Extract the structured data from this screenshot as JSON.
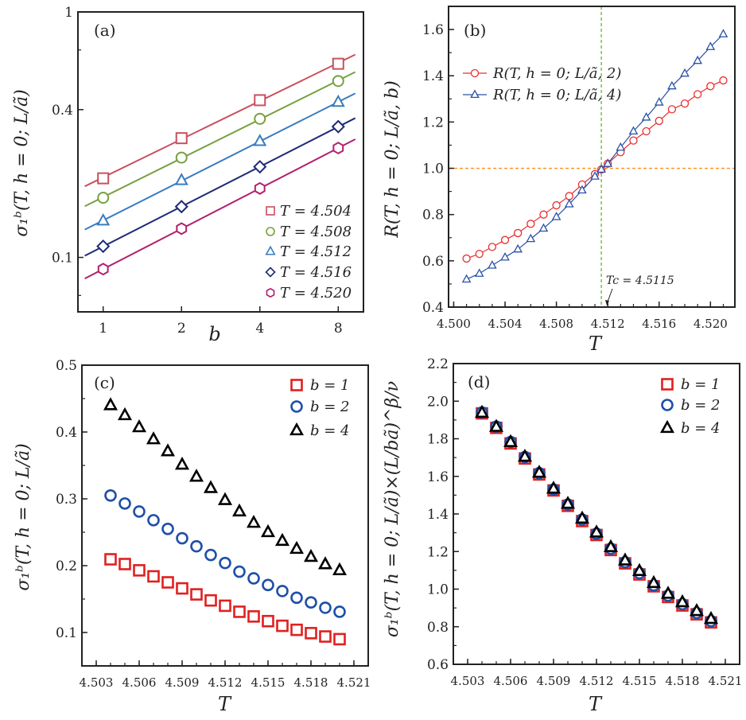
{
  "chart_data": [
    {
      "panel_label": "(a)",
      "type": "scatter",
      "xscale": "log2",
      "yscale": "log",
      "xlabel": "b",
      "ylabel": "σ₁ᵇ(T, h = 0; L/ã)",
      "xlim": [
        0.8,
        10
      ],
      "ylim": [
        0.06,
        1
      ],
      "xticks": [
        1,
        2,
        4,
        8
      ],
      "xtick_labels": [
        "1",
        "2",
        "4",
        "8"
      ],
      "yticks": [
        0.1,
        0.4,
        1
      ],
      "ytick_labels": [
        "0.1",
        "0.4",
        "1"
      ],
      "legend": "bottom-right",
      "fit_lines": true,
      "series": [
        {
          "name": "T = 4.504",
          "marker": "square",
          "color": "#c9505e",
          "x": [
            1,
            2,
            4,
            8
          ],
          "y": [
            0.21,
            0.306,
            0.437,
            0.615
          ]
        },
        {
          "name": "T = 4.508",
          "marker": "circle",
          "color": "#78a040",
          "x": [
            1,
            2,
            4,
            8
          ],
          "y": [
            0.175,
            0.255,
            0.367,
            0.523
          ]
        },
        {
          "name": "T = 4.512",
          "marker": "triangle",
          "color": "#3a7cc0",
          "x": [
            1,
            2,
            4,
            8
          ],
          "y": [
            0.141,
            0.206,
            0.297,
            0.429
          ]
        },
        {
          "name": "T = 4.516",
          "marker": "diamond",
          "color": "#1e2a78",
          "x": [
            1,
            2,
            4,
            8
          ],
          "y": [
            0.111,
            0.161,
            0.234,
            0.341
          ]
        },
        {
          "name": "T = 4.520",
          "marker": "hexagon",
          "color": "#b0206e",
          "x": [
            1,
            2,
            4,
            8
          ],
          "y": [
            0.0896,
            0.131,
            0.191,
            0.279
          ]
        }
      ]
    },
    {
      "panel_label": "(b)",
      "type": "line",
      "xlabel": "T",
      "ylabel": "R(T, h = 0; L/ã, b)",
      "xlim": [
        4.4996,
        4.5219
      ],
      "ylim": [
        0.4,
        1.7
      ],
      "xticks": [
        4.5,
        4.504,
        4.508,
        4.512,
        4.516,
        4.52
      ],
      "xtick_labels": [
        "4.500",
        "4.504",
        "4.508",
        "4.512",
        "4.516",
        "4.520"
      ],
      "yticks": [
        0.4,
        0.6,
        0.8,
        1.0,
        1.2,
        1.4,
        1.6
      ],
      "ytick_labels": [
        "0.4",
        "0.6",
        "0.8",
        "1.0",
        "1.2",
        "1.4",
        "1.6"
      ],
      "legend": "top-left",
      "reference_lines": {
        "y": 1.0,
        "y_color": "#ff8c1a",
        "x": 4.5115,
        "x_color": "#7cc040"
      },
      "annotation": "Tc = 4.5115",
      "series": [
        {
          "name": "R(T, h = 0; L/ã, 2)",
          "marker": "circle",
          "color": "#e83030",
          "x": [
            4.501,
            4.502,
            4.503,
            4.504,
            4.505,
            4.506,
            4.507,
            4.508,
            4.509,
            4.51,
            4.511,
            4.5115,
            4.512,
            4.513,
            4.514,
            4.515,
            4.516,
            4.517,
            4.518,
            4.519,
            4.52,
            4.521
          ],
          "y": [
            0.61,
            0.63,
            0.66,
            0.69,
            0.72,
            0.76,
            0.8,
            0.84,
            0.88,
            0.93,
            0.975,
            0.995,
            1.02,
            1.07,
            1.12,
            1.16,
            1.205,
            1.255,
            1.28,
            1.32,
            1.355,
            1.38
          ]
        },
        {
          "name": "R(T, h = 0; L/ã, 4)",
          "marker": "triangle",
          "color": "#2a50a8",
          "x": [
            4.501,
            4.502,
            4.503,
            4.504,
            4.505,
            4.506,
            4.507,
            4.508,
            4.509,
            4.51,
            4.511,
            4.5115,
            4.512,
            4.513,
            4.514,
            4.515,
            4.516,
            4.517,
            4.518,
            4.519,
            4.52,
            4.521
          ],
          "y": [
            0.52,
            0.545,
            0.58,
            0.615,
            0.65,
            0.695,
            0.74,
            0.79,
            0.845,
            0.905,
            0.965,
            0.995,
            1.02,
            1.09,
            1.16,
            1.22,
            1.285,
            1.355,
            1.41,
            1.465,
            1.525,
            1.58
          ]
        }
      ]
    },
    {
      "panel_label": "(c)",
      "type": "scatter",
      "xlabel": "T",
      "ylabel": "σ₁ᵇ(T, h = 0; L/ã)",
      "xlim": [
        4.502,
        4.522
      ],
      "ylim": [
        0.05,
        0.5
      ],
      "xticks": [
        4.503,
        4.506,
        4.509,
        4.512,
        4.515,
        4.518,
        4.521
      ],
      "xtick_labels": [
        "4.503",
        "4.506",
        "4.509",
        "4.512",
        "4.515",
        "4.518",
        "4.521"
      ],
      "yticks": [
        0.1,
        0.2,
        0.3,
        0.4,
        0.5
      ],
      "ytick_labels": [
        "0.1",
        "0.2",
        "0.3",
        "0.4",
        "0.5"
      ],
      "legend": "top-right",
      "series": [
        {
          "name": "b = 1",
          "marker": "square",
          "color": "#e02020",
          "x": [
            4.504,
            4.505,
            4.506,
            4.507,
            4.508,
            4.509,
            4.51,
            4.511,
            4.512,
            4.513,
            4.514,
            4.515,
            4.516,
            4.517,
            4.518,
            4.519,
            4.52
          ],
          "y": [
            0.2095,
            0.2024,
            0.193,
            0.184,
            0.175,
            0.166,
            0.157,
            0.148,
            0.14,
            0.131,
            0.124,
            0.117,
            0.11,
            0.104,
            0.099,
            0.094,
            0.09
          ]
        },
        {
          "name": "b = 2",
          "marker": "circle",
          "color": "#1f4fa8",
          "x": [
            4.504,
            4.505,
            4.506,
            4.507,
            4.508,
            4.509,
            4.51,
            4.511,
            4.512,
            4.513,
            4.514,
            4.515,
            4.516,
            4.517,
            4.518,
            4.519,
            4.52
          ],
          "y": [
            0.305,
            0.293,
            0.281,
            0.268,
            0.255,
            0.241,
            0.229,
            0.216,
            0.204,
            0.191,
            0.181,
            0.171,
            0.162,
            0.152,
            0.145,
            0.137,
            0.131
          ]
        },
        {
          "name": "b = 4",
          "marker": "triangle",
          "color": "#000000",
          "x": [
            4.504,
            4.505,
            4.506,
            4.507,
            4.508,
            4.509,
            4.51,
            4.511,
            4.512,
            4.513,
            4.514,
            4.515,
            4.516,
            4.517,
            4.518,
            4.519,
            4.52
          ],
          "y": [
            0.44,
            0.425,
            0.407,
            0.389,
            0.371,
            0.351,
            0.333,
            0.316,
            0.298,
            0.281,
            0.264,
            0.25,
            0.237,
            0.225,
            0.213,
            0.202,
            0.193
          ]
        }
      ]
    },
    {
      "panel_label": "(d)",
      "type": "scatter",
      "xlabel": "T",
      "ylabel": "σ₁ᵇ(T, h = 0; L/ã)×(L/bã)^β/ν",
      "xlim": [
        4.502,
        4.522
      ],
      "ylim": [
        0.6,
        2.2
      ],
      "xticks": [
        4.503,
        4.506,
        4.509,
        4.512,
        4.515,
        4.518,
        4.521
      ],
      "xtick_labels": [
        "4.503",
        "4.506",
        "4.509",
        "4.512",
        "4.515",
        "4.518",
        "4.521"
      ],
      "yticks": [
        0.6,
        0.8,
        1.0,
        1.2,
        1.4,
        1.6,
        1.8,
        2.0,
        2.2
      ],
      "ytick_labels": [
        "0.6",
        "0.8",
        "1.0",
        "1.2",
        "1.4",
        "1.6",
        "1.8",
        "2.0",
        "2.2"
      ],
      "legend": "top-right",
      "series": [
        {
          "name": "b = 1",
          "marker": "square",
          "color": "#e02020",
          "x": [
            4.504,
            4.505,
            4.506,
            4.507,
            4.508,
            4.509,
            4.51,
            4.511,
            4.512,
            4.513,
            4.514,
            4.515,
            4.516,
            4.517,
            4.518,
            4.519,
            4.52
          ],
          "y": [
            1.935,
            1.858,
            1.775,
            1.695,
            1.61,
            1.525,
            1.443,
            1.362,
            1.288,
            1.208,
            1.137,
            1.078,
            1.015,
            0.958,
            0.913,
            0.866,
            0.823
          ]
        },
        {
          "name": "b = 2",
          "marker": "circle",
          "color": "#1f4fa8",
          "x": [
            4.504,
            4.505,
            4.506,
            4.507,
            4.508,
            4.509,
            4.51,
            4.511,
            4.512,
            4.513,
            4.514,
            4.515,
            4.516,
            4.517,
            4.518,
            4.519,
            4.52
          ],
          "y": [
            1.94,
            1.865,
            1.783,
            1.703,
            1.617,
            1.53,
            1.45,
            1.37,
            1.295,
            1.215,
            1.143,
            1.085,
            1.02,
            0.965,
            0.92,
            0.873,
            0.83
          ]
        },
        {
          "name": "b = 4",
          "marker": "triangle",
          "color": "#000000",
          "x": [
            4.504,
            4.505,
            4.506,
            4.507,
            4.508,
            4.509,
            4.51,
            4.511,
            4.512,
            4.513,
            4.514,
            4.515,
            4.516,
            4.517,
            4.518,
            4.519,
            4.52
          ],
          "y": [
            1.938,
            1.863,
            1.782,
            1.704,
            1.619,
            1.534,
            1.454,
            1.375,
            1.301,
            1.223,
            1.152,
            1.096,
            1.032,
            0.975,
            0.93,
            0.883,
            0.841
          ]
        }
      ]
    }
  ]
}
